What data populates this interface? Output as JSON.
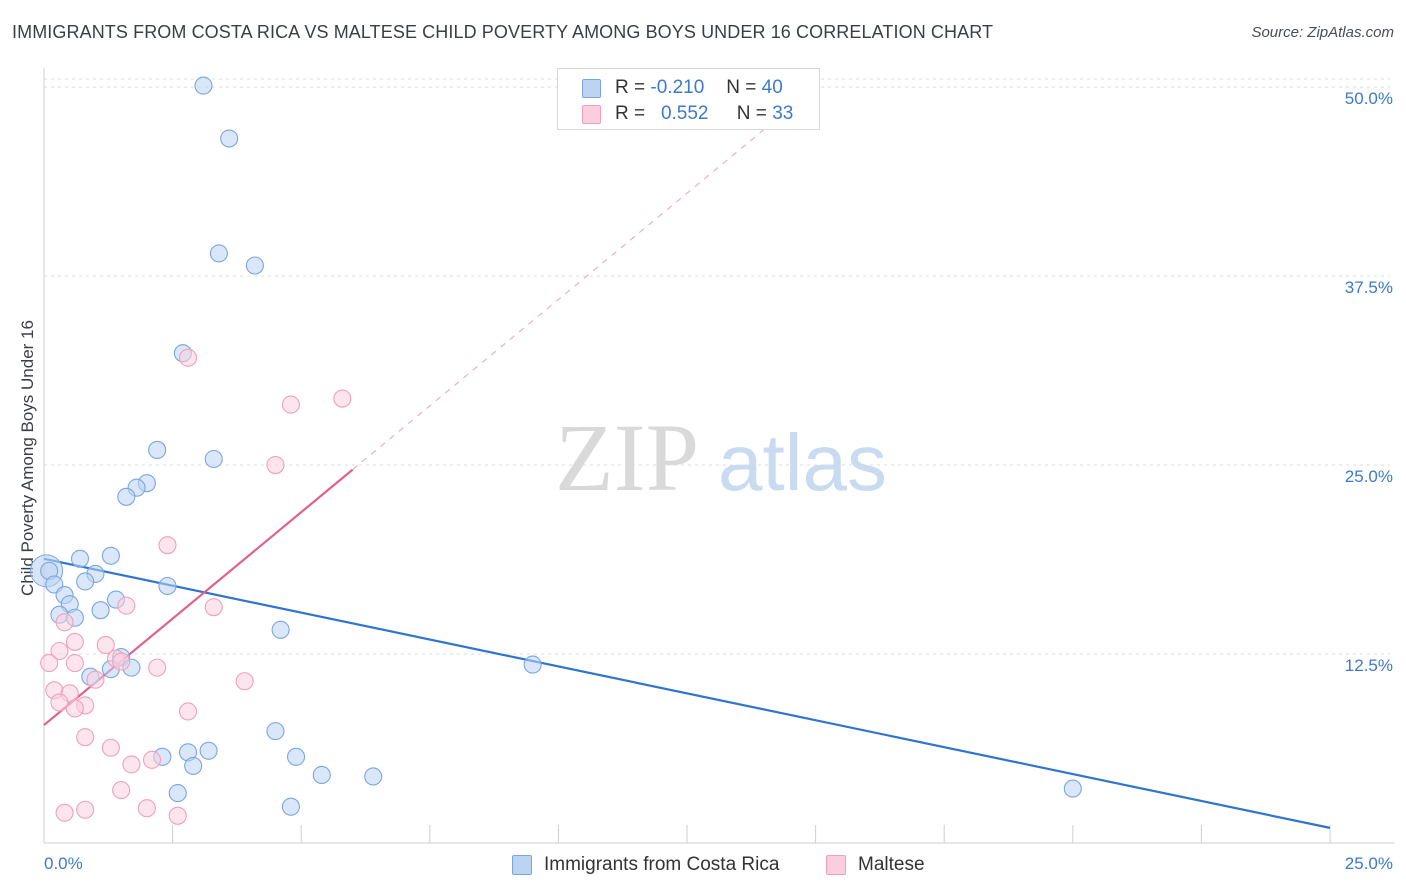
{
  "title": "IMMIGRANTS FROM COSTA RICA VS MALTESE CHILD POVERTY AMONG BOYS UNDER 16 CORRELATION CHART",
  "source": "Source: ZipAtlas.com",
  "watermark": {
    "zip": "ZIP",
    "atlas": "atlas"
  },
  "legend_top": [
    {
      "r_label": "R =",
      "r_value": "-0.210",
      "n_label": "N =",
      "n_value": "40"
    },
    {
      "r_label": "R =",
      "r_value": "0.552",
      "n_label": "N =",
      "n_value": "33"
    }
  ],
  "chart_data": {
    "type": "scatter",
    "title": "IMMIGRANTS FROM COSTA RICA VS MALTESE CHILD POVERTY AMONG BOYS UNDER 16 CORRELATION CHART",
    "xlabel": "",
    "ylabel": "Child Poverty Among Boys Under 16",
    "xlim": [
      0,
      25
    ],
    "ylim": [
      0,
      51
    ],
    "x_tick_labels": [
      "0.0%",
      "25.0%"
    ],
    "y_ticks": [
      12.5,
      25.0,
      37.5,
      50.0
    ],
    "y_tick_labels": [
      "12.5%",
      "25.0%",
      "37.5%",
      "50.0%"
    ],
    "grid": true,
    "legend_position": "bottom-center",
    "series": [
      {
        "name": "Immigrants from Costa Rica",
        "color": "#7aa6e0",
        "fill": "#bcd3f2",
        "trend": {
          "x": [
            0,
            25
          ],
          "y": [
            18.8,
            1.0
          ],
          "color": "#2f74d0"
        },
        "points": [
          [
            3.1,
            50.1
          ],
          [
            3.6,
            46.6
          ],
          [
            3.4,
            39.0
          ],
          [
            4.1,
            38.2
          ],
          [
            2.7,
            32.4
          ],
          [
            2.2,
            26.0
          ],
          [
            3.3,
            25.4
          ],
          [
            2.0,
            23.8
          ],
          [
            1.8,
            23.5
          ],
          [
            1.6,
            22.9
          ],
          [
            0.1,
            18.0
          ],
          [
            0.7,
            18.8
          ],
          [
            1.3,
            19.0
          ],
          [
            1.0,
            17.8
          ],
          [
            0.8,
            17.3
          ],
          [
            0.2,
            17.1
          ],
          [
            2.4,
            17.0
          ],
          [
            0.4,
            16.4
          ],
          [
            1.4,
            16.1
          ],
          [
            0.5,
            15.8
          ],
          [
            1.1,
            15.4
          ],
          [
            0.3,
            15.1
          ],
          [
            0.6,
            14.9
          ],
          [
            4.6,
            14.1
          ],
          [
            1.5,
            12.3
          ],
          [
            1.7,
            11.6
          ],
          [
            1.3,
            11.5
          ],
          [
            0.9,
            11.0
          ],
          [
            9.5,
            11.8
          ],
          [
            4.5,
            7.4
          ],
          [
            3.2,
            6.1
          ],
          [
            2.8,
            6.0
          ],
          [
            2.3,
            5.7
          ],
          [
            4.9,
            5.7
          ],
          [
            2.9,
            5.1
          ],
          [
            5.4,
            4.5
          ],
          [
            6.4,
            4.4
          ],
          [
            2.6,
            3.3
          ],
          [
            4.8,
            2.4
          ],
          [
            20.0,
            3.6
          ]
        ]
      },
      {
        "name": "Maltese",
        "color": "#f0a0bd",
        "fill": "#f9cfdd",
        "trend": {
          "x": [
            0,
            6.0
          ],
          "y": [
            7.8,
            24.7
          ],
          "color": "#e0608f"
        },
        "trend_extended": {
          "x": [
            6.0,
            14.0
          ],
          "y": [
            24.7,
            47.2
          ]
        },
        "points": [
          [
            2.8,
            32.1
          ],
          [
            5.8,
            29.4
          ],
          [
            4.8,
            29.0
          ],
          [
            4.5,
            25.0
          ],
          [
            2.4,
            19.7
          ],
          [
            1.6,
            15.7
          ],
          [
            3.3,
            15.6
          ],
          [
            0.4,
            14.6
          ],
          [
            0.6,
            13.3
          ],
          [
            1.2,
            13.1
          ],
          [
            0.3,
            12.7
          ],
          [
            1.4,
            12.2
          ],
          [
            0.1,
            11.9
          ],
          [
            0.6,
            11.9
          ],
          [
            1.5,
            12.0
          ],
          [
            2.2,
            11.6
          ],
          [
            1.0,
            10.8
          ],
          [
            3.9,
            10.7
          ],
          [
            0.2,
            10.1
          ],
          [
            0.5,
            9.9
          ],
          [
            0.3,
            9.3
          ],
          [
            0.8,
            9.1
          ],
          [
            0.6,
            8.9
          ],
          [
            2.8,
            8.7
          ],
          [
            0.8,
            7.0
          ],
          [
            1.3,
            6.3
          ],
          [
            1.7,
            5.2
          ],
          [
            2.1,
            5.5
          ],
          [
            1.5,
            3.5
          ],
          [
            0.8,
            2.2
          ],
          [
            2.0,
            2.3
          ],
          [
            2.6,
            1.8
          ],
          [
            0.4,
            2.0
          ]
        ]
      }
    ]
  }
}
